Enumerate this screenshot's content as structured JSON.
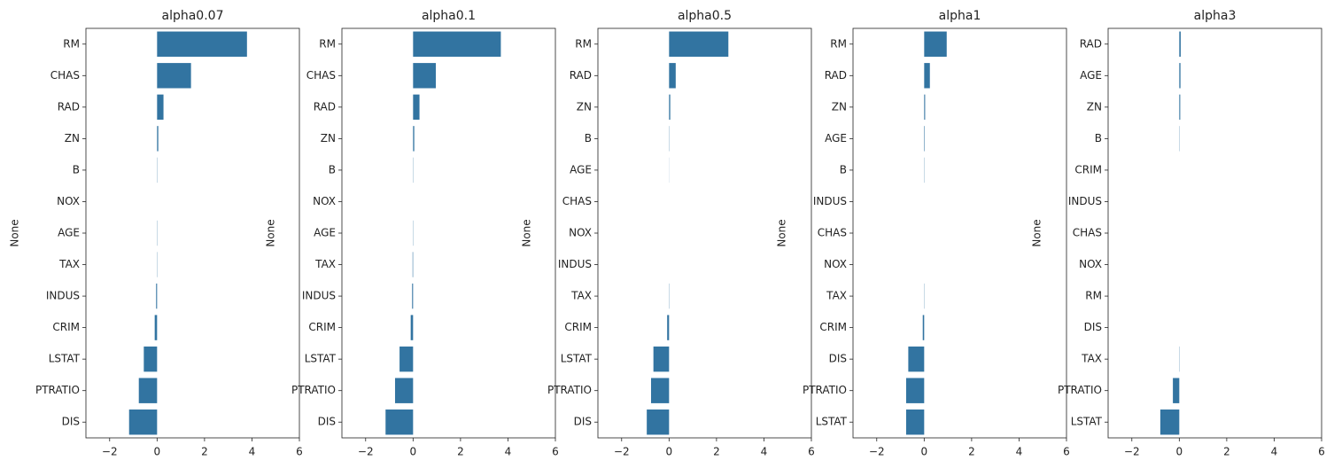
{
  "chart_data": [
    {
      "type": "barh",
      "title": "alpha0.07",
      "ylabel": "None",
      "color": "#3274a1",
      "categories": [
        "RM",
        "CHAS",
        "RAD",
        "ZN",
        "B",
        "NOX",
        "AGE",
        "TAX",
        "INDUS",
        "CRIM",
        "LSTAT",
        "PTRATIO",
        "DIS"
      ],
      "values": [
        3.79,
        1.43,
        0.27,
        0.05,
        0.01,
        0,
        -0.01,
        -0.01,
        -0.04,
        -0.1,
        -0.56,
        -0.77,
        -1.18
      ],
      "xlim": [
        -3,
        6
      ],
      "xticks": [
        {
          "value": -2,
          "label": "−2"
        },
        0,
        2,
        4,
        6
      ]
    },
    {
      "type": "barh",
      "title": "alpha0.1",
      "ylabel": "None",
      "color": "#3274a1",
      "categories": [
        "RM",
        "CHAS",
        "RAD",
        "ZN",
        "B",
        "NOX",
        "AGE",
        "TAX",
        "INDUS",
        "CRIM",
        "LSTAT",
        "PTRATIO",
        "DIS"
      ],
      "values": [
        3.7,
        0.96,
        0.27,
        0.05,
        0.01,
        0,
        -0.01,
        -0.02,
        -0.04,
        -0.1,
        -0.57,
        -0.76,
        -1.16
      ],
      "xlim": [
        -3,
        6
      ],
      "xticks": [
        {
          "value": -2,
          "label": "−2"
        },
        0,
        2,
        4,
        6
      ]
    },
    {
      "type": "barh",
      "title": "alpha0.5",
      "ylabel": "None",
      "color": "#3274a1",
      "categories": [
        "RM",
        "RAD",
        "ZN",
        "B",
        "AGE",
        "CHAS",
        "NOX",
        "INDUS",
        "TAX",
        "CRIM",
        "LSTAT",
        "PTRATIO",
        "DIS"
      ],
      "values": [
        2.5,
        0.28,
        0.05,
        0.01,
        0.004,
        0,
        0,
        0,
        -0.01,
        -0.08,
        -0.66,
        -0.76,
        -0.94
      ],
      "xlim": [
        -3,
        6
      ],
      "xticks": [
        {
          "value": -2,
          "label": "−2"
        },
        0,
        2,
        4,
        6
      ]
    },
    {
      "type": "barh",
      "title": "alpha1",
      "ylabel": "None",
      "color": "#3274a1",
      "categories": [
        "RM",
        "RAD",
        "ZN",
        "AGE",
        "B",
        "INDUS",
        "CHAS",
        "NOX",
        "TAX",
        "CRIM",
        "DIS",
        "PTRATIO",
        "LSTAT"
      ],
      "values": [
        0.95,
        0.24,
        0.04,
        0.02,
        0.01,
        0,
        0,
        0,
        -0.01,
        -0.06,
        -0.67,
        -0.76,
        -0.76
      ],
      "xlim": [
        -3,
        6
      ],
      "xticks": [
        {
          "value": -2,
          "label": "−2"
        },
        0,
        2,
        4,
        6
      ]
    },
    {
      "type": "barh",
      "title": "alpha3",
      "ylabel": "None",
      "color": "#3274a1",
      "categories": [
        "RAD",
        "AGE",
        "ZN",
        "B",
        "CRIM",
        "INDUS",
        "CHAS",
        "NOX",
        "RM",
        "DIS",
        "TAX",
        "PTRATIO",
        "LSTAT"
      ],
      "values": [
        0.06,
        0.05,
        0.04,
        0.01,
        0,
        0,
        0,
        0,
        0,
        0,
        -0.01,
        -0.27,
        -0.8
      ],
      "xlim": [
        -3,
        6
      ],
      "xticks": [
        {
          "value": -2,
          "label": "−2"
        },
        0,
        2,
        4,
        6
      ]
    }
  ]
}
